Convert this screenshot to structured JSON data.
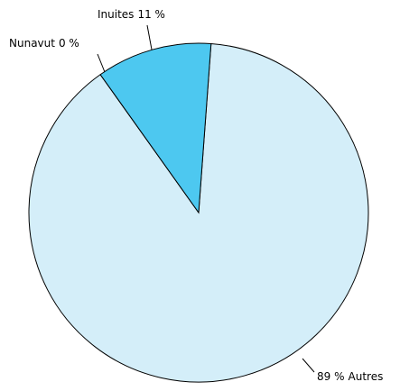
{
  "chart_data": {
    "type": "pie",
    "categories": [
      "Inuites",
      "Nunavut",
      "Autres"
    ],
    "values": [
      11,
      0,
      89
    ],
    "value_labels": [
      "11 %",
      "0 %",
      "89 %"
    ],
    "colors": [
      "#4dc8f0",
      "#4dc8f0",
      "#d4eef9"
    ]
  }
}
